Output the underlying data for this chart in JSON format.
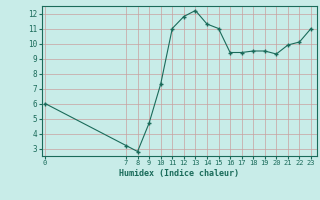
{
  "title": "",
  "xlabel": "Humidex (Indice chaleur)",
  "x": [
    0,
    7,
    8,
    9,
    10,
    11,
    12,
    13,
    14,
    15,
    16,
    17,
    18,
    19,
    20,
    21,
    22,
    23
  ],
  "y": [
    6.0,
    3.2,
    2.8,
    4.7,
    7.3,
    11.0,
    11.8,
    12.2,
    11.3,
    11.0,
    9.4,
    9.4,
    9.5,
    9.5,
    9.3,
    9.9,
    10.1,
    11.0
  ],
  "line_color": "#1a6b5a",
  "marker_color": "#1a6b5a",
  "bg_color": "#c8ece8",
  "grid_color": "#c8a0a0",
  "tick_color": "#1a6b5a",
  "label_color": "#1a6b5a",
  "ylim": [
    2.5,
    12.5
  ],
  "yticks": [
    3,
    4,
    5,
    6,
    7,
    8,
    9,
    10,
    11,
    12
  ],
  "xticks": [
    0,
    7,
    8,
    9,
    10,
    11,
    12,
    13,
    14,
    15,
    16,
    17,
    18,
    19,
    20,
    21,
    22,
    23
  ],
  "xlim": [
    -0.3,
    23.5
  ]
}
